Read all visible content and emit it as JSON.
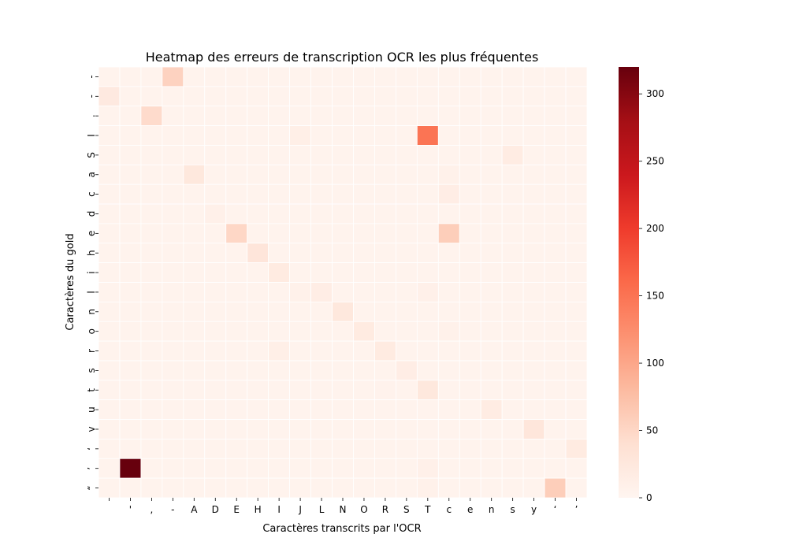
{
  "chart_data": {
    "type": "heatmap",
    "title": "Heatmap des erreurs de transcription OCR les plus fréquentes",
    "xlabel": "Caractères transcrits par l'OCR",
    "ylabel": "Caractères du gold",
    "x_categories": [
      " ",
      "'",
      ",",
      "-",
      "A",
      "D",
      "E",
      "H",
      "I",
      "J",
      "L",
      "N",
      "O",
      "R",
      "S",
      "T",
      "c",
      "e",
      "n",
      "s",
      "y",
      "‘",
      "’"
    ],
    "y_categories": [
      "-",
      "-",
      ".",
      "I",
      "S",
      "a",
      "c",
      "d",
      "e",
      "h",
      "i",
      "l",
      "n",
      "o",
      "r",
      "s",
      "t",
      "u",
      "v",
      "‘",
      "’",
      "“"
    ],
    "colorbar": {
      "min": 0,
      "max": 320,
      "ticks": [
        0,
        50,
        100,
        150,
        200,
        250,
        300
      ],
      "colormap": "Reds"
    },
    "default_value": 4,
    "cells": [
      {
        "row": 0,
        "col": 3,
        "value": 55
      },
      {
        "row": 1,
        "col": 0,
        "value": 22
      },
      {
        "row": 2,
        "col": 2,
        "value": 45
      },
      {
        "row": 3,
        "col": 9,
        "value": 12
      },
      {
        "row": 3,
        "col": 15,
        "value": 150
      },
      {
        "row": 4,
        "col": 19,
        "value": 18
      },
      {
        "row": 5,
        "col": 4,
        "value": 25
      },
      {
        "row": 5,
        "col": 16,
        "value": 8
      },
      {
        "row": 6,
        "col": 16,
        "value": 15
      },
      {
        "row": 7,
        "col": 5,
        "value": 10
      },
      {
        "row": 8,
        "col": 6,
        "value": 50
      },
      {
        "row": 8,
        "col": 16,
        "value": 60
      },
      {
        "row": 9,
        "col": 7,
        "value": 30
      },
      {
        "row": 10,
        "col": 8,
        "value": 20
      },
      {
        "row": 11,
        "col": 9,
        "value": 8
      },
      {
        "row": 11,
        "col": 10,
        "value": 15
      },
      {
        "row": 11,
        "col": 15,
        "value": 10
      },
      {
        "row": 12,
        "col": 11,
        "value": 25
      },
      {
        "row": 13,
        "col": 12,
        "value": 20
      },
      {
        "row": 13,
        "col": 16,
        "value": 8
      },
      {
        "row": 14,
        "col": 8,
        "value": 12
      },
      {
        "row": 14,
        "col": 13,
        "value": 20
      },
      {
        "row": 15,
        "col": 14,
        "value": 15
      },
      {
        "row": 16,
        "col": 13,
        "value": 6
      },
      {
        "row": 16,
        "col": 15,
        "value": 25
      },
      {
        "row": 17,
        "col": 18,
        "value": 18
      },
      {
        "row": 18,
        "col": 20,
        "value": 28
      },
      {
        "row": 19,
        "col": 22,
        "value": 20
      },
      {
        "row": 20,
        "col": 1,
        "value": 320
      },
      {
        "row": 20,
        "col": 15,
        "value": 10
      },
      {
        "row": 21,
        "col": 15,
        "value": 8
      },
      {
        "row": 21,
        "col": 21,
        "value": 60
      }
    ]
  }
}
